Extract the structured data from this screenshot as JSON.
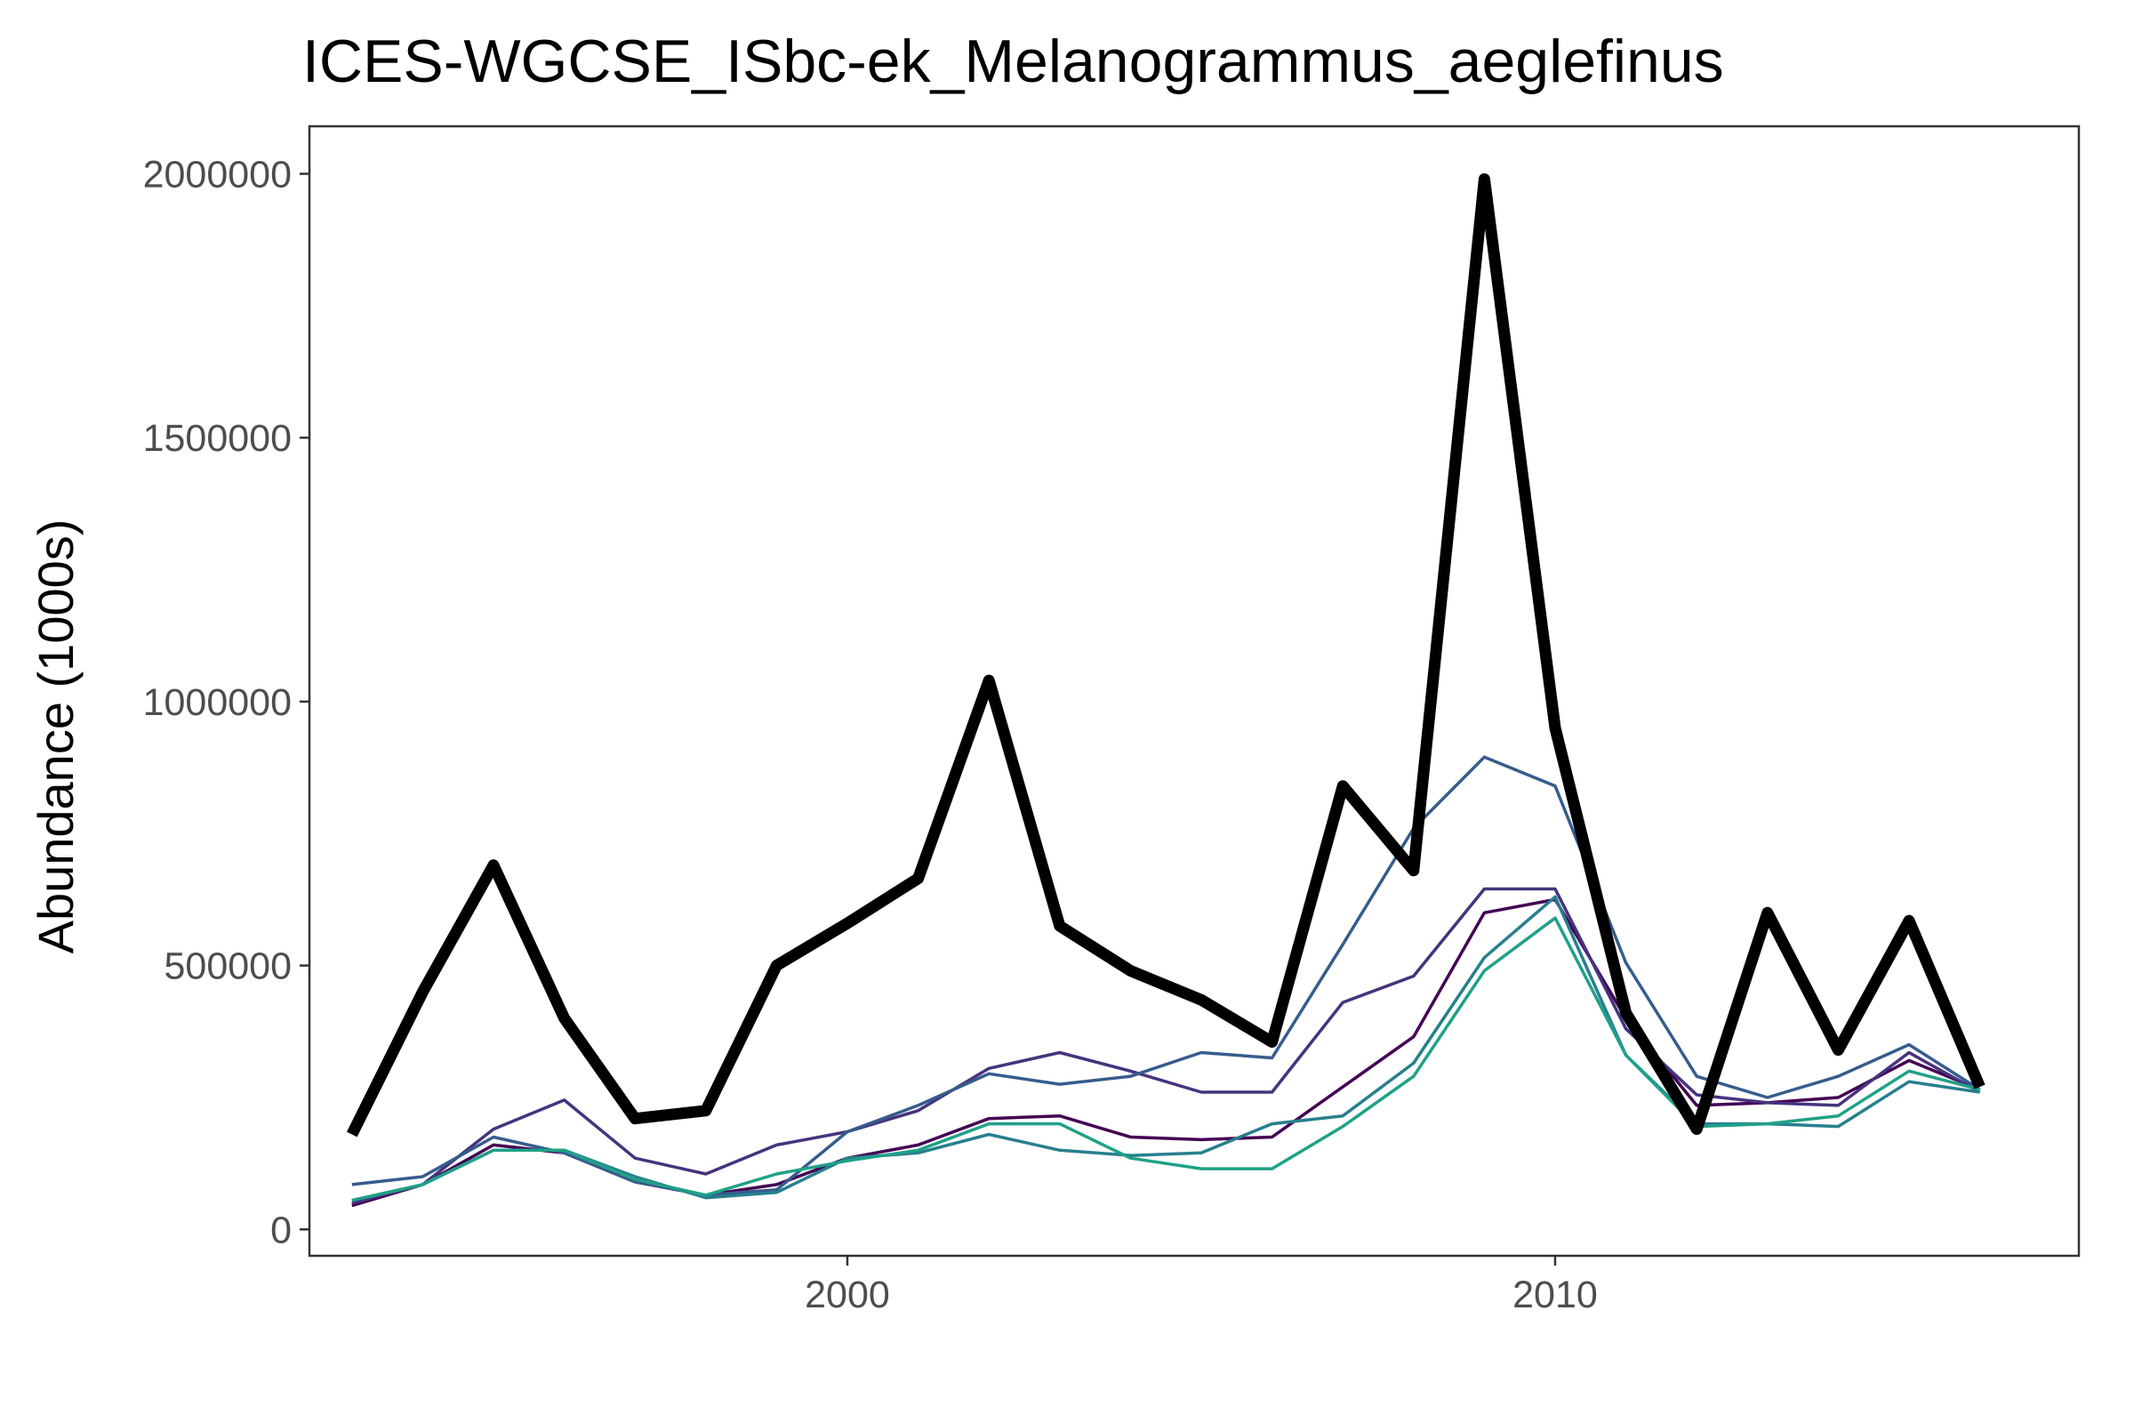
{
  "chart_data": {
    "type": "line",
    "title": "ICES-WGCSE_ISbc-ek_Melanogrammus_aeglefinus",
    "xlabel": "",
    "ylabel": "Abundance (1000s)",
    "xlim": [
      1992.4,
      2017.4
    ],
    "ylim": [
      -50000,
      2090000
    ],
    "x_ticks": [
      2000,
      2010
    ],
    "y_ticks": [
      0,
      500000,
      1000000,
      1500000,
      2000000
    ],
    "x_tick_labels": [
      "2000",
      "2010"
    ],
    "y_tick_labels": [
      "0",
      "500000",
      "1000000",
      "1500000",
      "2000000"
    ],
    "grid": false,
    "legend": "none",
    "x": [
      1993,
      1994,
      1995,
      1996,
      1997,
      1998,
      1999,
      2000,
      2001,
      2002,
      2003,
      2004,
      2005,
      2006,
      2007,
      2008,
      2009,
      2010,
      2011,
      2012,
      2013,
      2014,
      2015,
      2016
    ],
    "series": [
      {
        "color": "#000000",
        "width": 13,
        "values": [
          180000,
          450000,
          690000,
          400000,
          210000,
          225000,
          500000,
          580000,
          665000,
          1040000,
          575000,
          490000,
          435000,
          355000,
          840000,
          680000,
          1990000,
          950000,
          410000,
          190000,
          600000,
          340000,
          585000,
          270000
        ]
      },
      {
        "color": "#440154",
        "width": 3.5,
        "values": [
          45000,
          85000,
          160000,
          145000,
          90000,
          65000,
          85000,
          135000,
          160000,
          210000,
          215000,
          175000,
          170000,
          175000,
          270000,
          365000,
          600000,
          625000,
          400000,
          235000,
          240000,
          250000,
          320000,
          265000
        ]
      },
      {
        "color": "#46337e",
        "width": 3.5,
        "values": [
          50000,
          85000,
          190000,
          245000,
          135000,
          105000,
          160000,
          185000,
          225000,
          305000,
          335000,
          300000,
          260000,
          260000,
          430000,
          480000,
          645000,
          645000,
          380000,
          255000,
          240000,
          235000,
          335000,
          260000
        ]
      },
      {
        "color": "#365c8d",
        "width": 3.5,
        "values": [
          85000,
          100000,
          175000,
          145000,
          90000,
          65000,
          75000,
          185000,
          235000,
          295000,
          275000,
          290000,
          335000,
          325000,
          540000,
          760000,
          895000,
          840000,
          505000,
          290000,
          250000,
          290000,
          350000,
          265000
        ]
      },
      {
        "color": "#277f8e",
        "width": 3.5,
        "values": [
          55000,
          85000,
          150000,
          150000,
          100000,
          60000,
          70000,
          135000,
          145000,
          180000,
          150000,
          140000,
          145000,
          200000,
          215000,
          315000,
          515000,
          630000,
          330000,
          200000,
          200000,
          195000,
          280000,
          260000
        ]
      },
      {
        "color": "#1fa187",
        "width": 3.5,
        "values": [
          55000,
          85000,
          150000,
          150000,
          95000,
          65000,
          105000,
          130000,
          150000,
          200000,
          200000,
          135000,
          115000,
          115000,
          195000,
          290000,
          490000,
          590000,
          330000,
          195000,
          200000,
          215000,
          300000,
          265000
        ]
      }
    ]
  }
}
